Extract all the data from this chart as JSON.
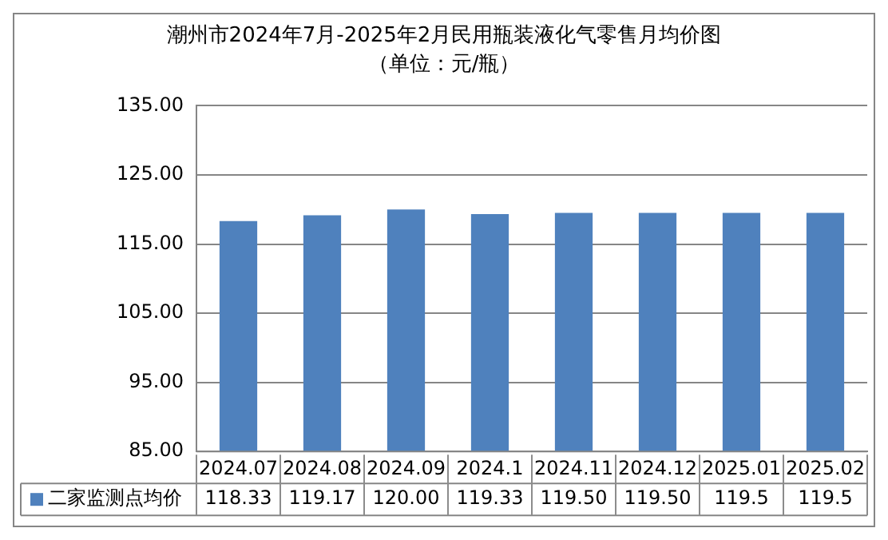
{
  "chart_data": {
    "type": "bar",
    "title": "潮州市2024年7月-2025年2月民用瓶装液化气零售月均价图",
    "subtitle": "（单位：元/瓶）",
    "categories": [
      "2024.07",
      "2024.08",
      "2024.09",
      "2024.1",
      "2024.11",
      "2024.12",
      "2025.01",
      "2025.02"
    ],
    "series": [
      {
        "name": "二家监测点均价",
        "color": "#4f81bd",
        "values": [
          118.33,
          119.17,
          120.0,
          119.33,
          119.5,
          119.5,
          119.5,
          119.5
        ],
        "value_labels": [
          "118.33",
          "119.17",
          "120.00",
          "119.33",
          "119.50",
          "119.50",
          "119.5",
          "119.5"
        ]
      }
    ],
    "ylim": [
      85,
      135
    ],
    "yticks": [
      {
        "value": 85,
        "label": "85.00"
      },
      {
        "value": 95,
        "label": "95.00"
      },
      {
        "value": 105,
        "label": "105.00"
      },
      {
        "value": 115,
        "label": "115.00"
      },
      {
        "value": 125,
        "label": "125.00"
      },
      {
        "value": 135,
        "label": "135.00"
      }
    ],
    "grid": "y",
    "legend": "bottom",
    "data_labels": true
  }
}
